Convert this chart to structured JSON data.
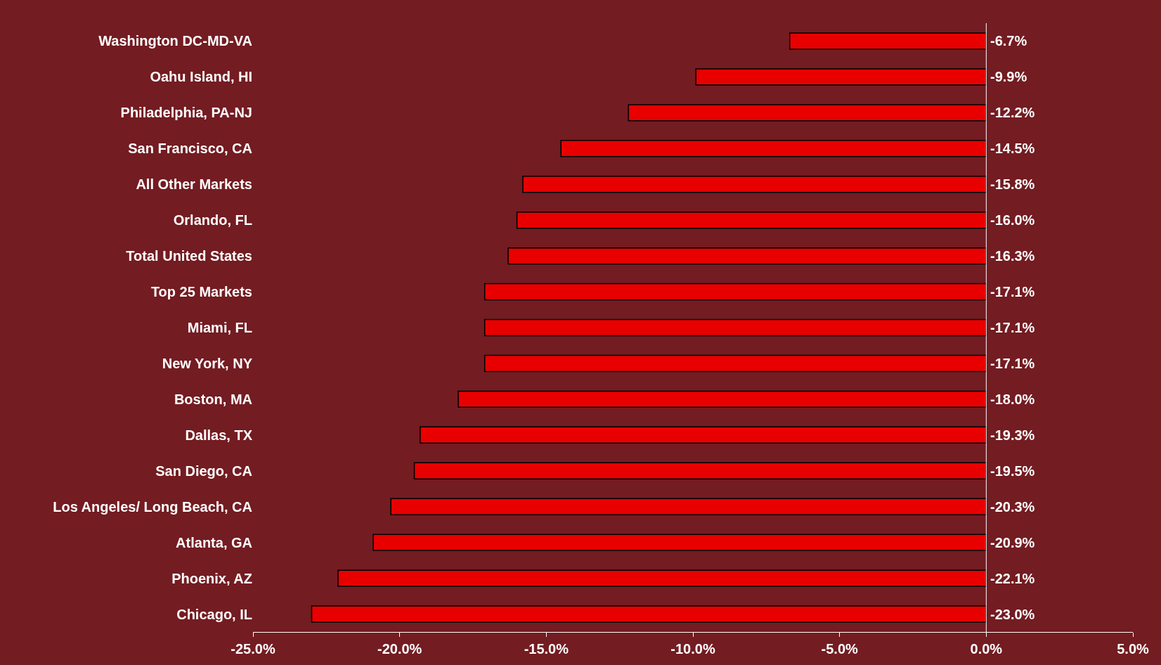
{
  "chart_data": {
    "type": "bar",
    "orientation": "horizontal",
    "categories": [
      "Washington DC-MD-VA",
      "Oahu Island, HI",
      "Philadelphia, PA-NJ",
      "San Francisco, CA",
      "All Other Markets",
      "Orlando, FL",
      "Total United States",
      "Top 25 Markets",
      "Miami, FL",
      "New York, NY",
      "Boston, MA",
      "Dallas, TX",
      "San Diego, CA",
      "Los Angeles/ Long Beach, CA",
      "Atlanta, GA",
      "Phoenix, AZ",
      "Chicago, IL"
    ],
    "values": [
      -6.7,
      -9.9,
      -12.2,
      -14.5,
      -15.8,
      -16.0,
      -16.3,
      -17.1,
      -17.1,
      -17.1,
      -18.0,
      -19.3,
      -19.5,
      -20.3,
      -20.9,
      -22.1,
      -23.0
    ],
    "value_labels": [
      "-6.7%",
      "-9.9%",
      "-12.2%",
      "-14.5%",
      "-15.8%",
      "-16.0%",
      "-16.3%",
      "-17.1%",
      "-17.1%",
      "-17.1%",
      "-18.0%",
      "-19.3%",
      "-19.5%",
      "-20.3%",
      "-20.9%",
      "-22.1%",
      "-23.0%"
    ],
    "color": "#e80000",
    "xlim": [
      -25,
      5
    ],
    "xticks": [
      {
        "value": -25,
        "label": "-25.0%"
      },
      {
        "value": -20,
        "label": "-20.0%"
      },
      {
        "value": -15,
        "label": "-15.0%"
      },
      {
        "value": -10,
        "label": "-10.0%"
      },
      {
        "value": -5,
        "label": "-5.0%"
      },
      {
        "value": 0,
        "label": "0.0%"
      },
      {
        "value": 5,
        "label": "5.0%"
      }
    ],
    "ref_lines": [
      {
        "axis": "x",
        "value": 0,
        "color": "#ffffff"
      }
    ]
  }
}
